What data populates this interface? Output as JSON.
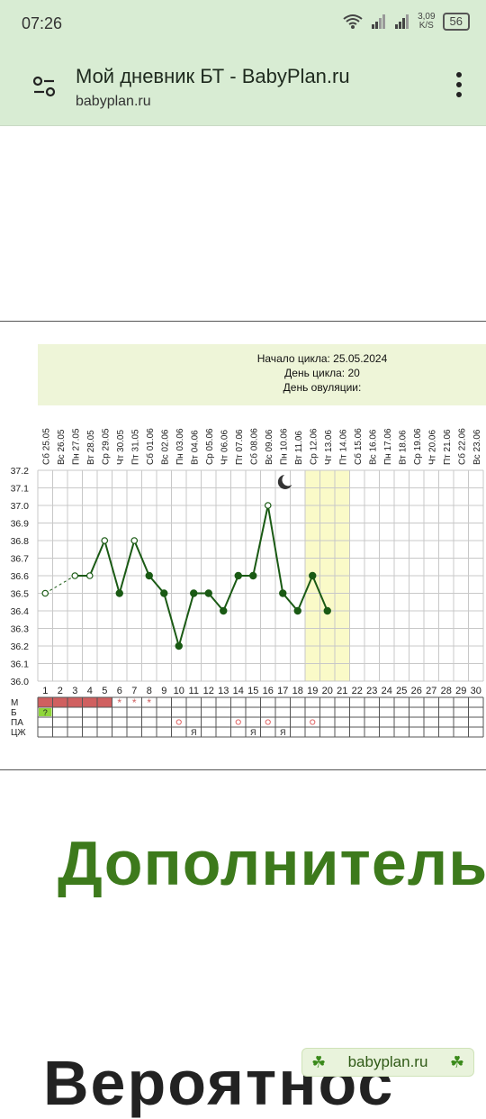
{
  "status": {
    "time": "07:26",
    "speed_value": "3,09",
    "speed_unit": "K/S",
    "battery": "56"
  },
  "app_bar": {
    "title": "Мой дневник БТ - BabyPlan.ru",
    "url": "babyplan.ru"
  },
  "chart_data": {
    "type": "line",
    "info": {
      "cycle_start": "Начало цикла: 25.05.2024",
      "cycle_day": "День цикла: 20",
      "ovulation_day": "День овуляции:"
    },
    "dates": [
      "Сб 25.05",
      "Вс 26.05",
      "Пн 27.05",
      "Вт 28.05",
      "Ср 29.05",
      "Чт 30.05",
      "Пт 31.05",
      "Сб 01.06",
      "Вс 02.06",
      "Пн 03.06",
      "Вт 04.06",
      "Ср 05.06",
      "Чт 06.06",
      "Пт 07.06",
      "Сб 08.06",
      "Вс 09.06",
      "Пн 10.06",
      "Вт 11.06",
      "Ср 12.06",
      "Чт 13.06",
      "Пт 14.06",
      "Сб 15.06",
      "Вс 16.06",
      "Пн 17.06",
      "Вт 18.06",
      "Ср 19.06",
      "Чт 20.06",
      "Пт 21.06",
      "Сб 22.06",
      "Вс 23.06"
    ],
    "days": [
      "1",
      "2",
      "3",
      "4",
      "5",
      "6",
      "7",
      "8",
      "9",
      "10",
      "11",
      "12",
      "13",
      "14",
      "15",
      "16",
      "17",
      "18",
      "19",
      "20",
      "21",
      "22",
      "23",
      "24",
      "25",
      "26",
      "27",
      "28",
      "29",
      "30"
    ],
    "y_ticks": [
      "37.2",
      "37.1",
      "37.0",
      "36.9",
      "36.8",
      "36.7",
      "36.6",
      "36.5",
      "36.4",
      "36.3",
      "36.2",
      "36.1",
      "36.0"
    ],
    "ylim": [
      36.0,
      37.2
    ],
    "temps": [
      36.5,
      null,
      36.6,
      36.6,
      36.8,
      36.5,
      36.8,
      36.6,
      36.5,
      36.2,
      36.5,
      36.5,
      36.4,
      36.6,
      36.6,
      37.0,
      36.5,
      36.4,
      36.6,
      36.4
    ],
    "open_points": [
      1,
      3,
      4,
      5,
      7,
      16
    ],
    "highlight_days": [
      19,
      21
    ],
    "moon_day": 17,
    "row_labels": [
      "М",
      "Б",
      "ПА",
      "ЦЖ"
    ],
    "menses_days": [
      1,
      5
    ],
    "menses_stars": [
      6,
      7,
      8
    ],
    "b_marks": [
      {
        "day": 1,
        "label": "?"
      }
    ],
    "pa_marks": [
      10,
      14,
      16,
      19
    ],
    "cz_marks": [
      {
        "day": 11,
        "label": "Я"
      },
      {
        "day": 15,
        "label": "Я"
      },
      {
        "day": 17,
        "label": "Я"
      }
    ],
    "colors": {
      "header_bg": "#eef5d8",
      "line": "#1a5a14",
      "highlight": "#fafac8",
      "menses": "#d06060",
      "b_mark": "#8fd63a",
      "pa_mark": "#e06666"
    }
  },
  "content": {
    "heading": "Дополнитель",
    "heading2": "Вероятнос",
    "badge": "babyplan.ru"
  }
}
